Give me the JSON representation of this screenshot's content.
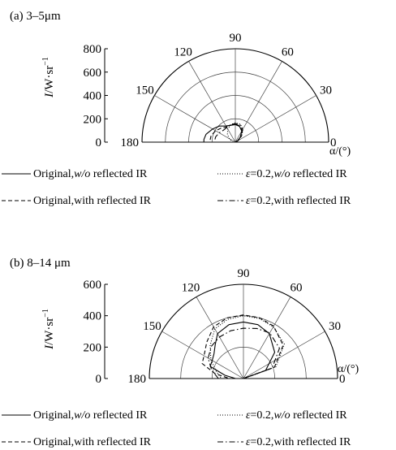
{
  "chart_data": [
    {
      "type": "polar-semicircle",
      "panel_label": "(a)  3–5μm",
      "ylabel": "I/W·sr",
      "ylabel_sup": "−1",
      "ylim": [
        0,
        800
      ],
      "y_ticks": [
        "800",
        "600",
        "400",
        "200",
        "0"
      ],
      "angle_ticks": [
        "180",
        "150",
        "120",
        "90",
        "60",
        "30",
        "0"
      ],
      "angle_label": "α/(°)",
      "series": [
        {
          "name": "Original, w/o reflected IR",
          "style": "solid",
          "points": [
            [
              0,
              0
            ],
            [
              30,
              20
            ],
            [
              45,
              60
            ],
            [
              60,
              110
            ],
            [
              75,
              140
            ],
            [
              90,
              150
            ],
            [
              105,
              150
            ],
            [
              120,
              160
            ],
            [
              135,
              195
            ],
            [
              150,
              225
            ],
            [
              165,
              260
            ],
            [
              175,
              270
            ],
            [
              180,
              270
            ]
          ]
        },
        {
          "name": "ε=0.2, w/o reflected IR",
          "style": "dotted",
          "points": [
            [
              0,
              0
            ],
            [
              30,
              30
            ],
            [
              45,
              80
            ],
            [
              60,
              130
            ],
            [
              75,
              160
            ],
            [
              90,
              165
            ],
            [
              105,
              155
            ],
            [
              120,
              130
            ],
            [
              135,
              95
            ],
            [
              150,
              60
            ],
            [
              165,
              30
            ],
            [
              180,
              25
            ]
          ]
        },
        {
          "name": "Original, with reflected IR",
          "style": "dashed",
          "points": [
            [
              0,
              0
            ],
            [
              30,
              25
            ],
            [
              45,
              65
            ],
            [
              60,
              115
            ],
            [
              75,
              145
            ],
            [
              90,
              155
            ],
            [
              105,
              150
            ],
            [
              120,
              150
            ],
            [
              135,
              170
            ],
            [
              150,
              195
            ],
            [
              165,
              215
            ],
            [
              180,
              220
            ]
          ]
        },
        {
          "name": "ε=0.2, with reflected IR",
          "style": "dashdot",
          "points": [
            [
              0,
              0
            ],
            [
              30,
              30
            ],
            [
              45,
              75
            ],
            [
              60,
              125
            ],
            [
              75,
              155
            ],
            [
              90,
              160
            ],
            [
              105,
              155
            ],
            [
              120,
              145
            ],
            [
              135,
              145
            ],
            [
              150,
              160
            ],
            [
              165,
              175
            ],
            [
              180,
              180
            ]
          ]
        }
      ]
    },
    {
      "type": "polar-semicircle",
      "panel_label": "(b)  8–14 μm",
      "ylabel": "I/W·sr",
      "ylabel_sup": "−1",
      "ylim": [
        0,
        600
      ],
      "y_ticks": [
        "600",
        "400",
        "200",
        "0"
      ],
      "angle_ticks": [
        "180",
        "150",
        "120",
        "90",
        "60",
        "30",
        "0"
      ],
      "angle_label": "α/(°)",
      "series": [
        {
          "name": "Original, w/o reflected IR",
          "style": "solid",
          "points": [
            [
              0,
              0
            ],
            [
              20,
              150
            ],
            [
              40,
              260
            ],
            [
              60,
              330
            ],
            [
              75,
              355
            ],
            [
              90,
              360
            ],
            [
              105,
              355
            ],
            [
              120,
              330
            ],
            [
              130,
              280
            ],
            [
              140,
              245
            ],
            [
              150,
              230
            ],
            [
              160,
              225
            ],
            [
              170,
              120
            ],
            [
              180,
              50
            ]
          ]
        },
        {
          "name": "ε=0.2, w/o reflected IR",
          "style": "dotted",
          "points": [
            [
              0,
              0
            ],
            [
              20,
              220
            ],
            [
              40,
              340
            ],
            [
              60,
              380
            ],
            [
              75,
              395
            ],
            [
              90,
              400
            ],
            [
              105,
              390
            ],
            [
              120,
              365
            ],
            [
              135,
              300
            ],
            [
              150,
              240
            ],
            [
              165,
              180
            ],
            [
              180,
              140
            ]
          ]
        },
        {
          "name": "Original, with reflected IR",
          "style": "dashed",
          "points": [
            [
              0,
              0
            ],
            [
              20,
              210
            ],
            [
              40,
              330
            ],
            [
              60,
              385
            ],
            [
              75,
              400
            ],
            [
              90,
              405
            ],
            [
              105,
              400
            ],
            [
              120,
              380
            ],
            [
              135,
              330
            ],
            [
              150,
              290
            ],
            [
              160,
              280
            ],
            [
              170,
              185
            ],
            [
              180,
              90
            ]
          ]
        },
        {
          "name": "ε=0.2, with reflected IR",
          "style": "dashdot",
          "points": [
            [
              0,
              0
            ],
            [
              20,
              195
            ],
            [
              40,
              300
            ],
            [
              60,
              335
            ],
            [
              75,
              330
            ],
            [
              90,
              320
            ],
            [
              105,
              315
            ],
            [
              120,
              305
            ],
            [
              135,
              290
            ],
            [
              150,
              260
            ],
            [
              165,
              210
            ],
            [
              180,
              160
            ]
          ]
        }
      ]
    }
  ],
  "legend": {
    "entries": [
      {
        "style": "solid",
        "prefix": "Original,",
        "italic": "w/o",
        "suffix": " reflected IR"
      },
      {
        "style": "dotted",
        "prefix": "ε=0.2,",
        "italic": "w/o",
        "suffix": " reflected IR"
      },
      {
        "style": "dashed",
        "prefix": "Original,with reflected IR",
        "italic": "",
        "suffix": ""
      },
      {
        "style": "dashdot",
        "prefix": "ε=0.2,with reflected IR",
        "italic": "",
        "suffix": ""
      }
    ]
  }
}
